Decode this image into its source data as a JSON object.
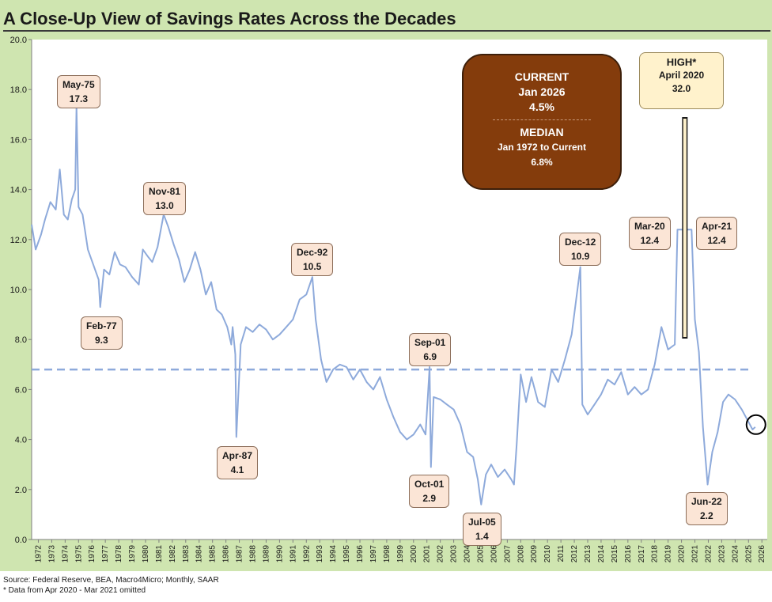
{
  "title": "A Close-Up View of Savings Rates Across the Decades",
  "colors": {
    "frame": "#cfe5b0",
    "line": "#8eaadb",
    "median": "#8eaadb",
    "current_box": "#843c0c",
    "callout": "#fbe5d6",
    "high_box": "#fff2cc"
  },
  "current_box": {
    "line1": "CURRENT",
    "line2": "Jan 2026",
    "line3": "4.5%",
    "line4": "MEDIAN",
    "line5": "Jan 1972 to Current",
    "line6": "6.8%"
  },
  "high_box": {
    "line1": "HIGH*",
    "line2": "April 2020",
    "line3": "32.0"
  },
  "callouts": [
    {
      "label": "May-75",
      "value": "17.3"
    },
    {
      "label": "Feb-77",
      "value": "9.3"
    },
    {
      "label": "Nov-81",
      "value": "13.0"
    },
    {
      "label": "Apr-87",
      "value": "4.1"
    },
    {
      "label": "Dec-92",
      "value": "10.5"
    },
    {
      "label": "Sep-01",
      "value": "6.9"
    },
    {
      "label": "Oct-01",
      "value": "2.9"
    },
    {
      "label": "Jul-05",
      "value": "1.4"
    },
    {
      "label": "Dec-12",
      "value": "10.9"
    },
    {
      "label": "Mar-20",
      "value": "12.4"
    },
    {
      "label": "Apr-21",
      "value": "12.4"
    },
    {
      "label": "Jun-22",
      "value": "2.2"
    }
  ],
  "footer": {
    "source": "Source: Federal Reserve, BEA, Macro4Micro; Monthly, SAAR",
    "note": "* Data from Apr 2020 - Mar 2021 omitted"
  },
  "chart_data": {
    "type": "line",
    "title": "A Close-Up View of Savings Rates Across the Decades",
    "xlabel": "",
    "ylabel": "",
    "ylim": [
      0,
      20
    ],
    "yticks": [
      "0.0",
      "2.0",
      "4.0",
      "6.0",
      "8.0",
      "10.0",
      "12.0",
      "14.0",
      "16.0",
      "18.0",
      "20.0"
    ],
    "x_categories": [
      "1972",
      "1973",
      "1974",
      "1975",
      "1976",
      "1977",
      "1978",
      "1979",
      "1980",
      "1981",
      "1982",
      "1983",
      "1984",
      "1985",
      "1986",
      "1987",
      "1988",
      "1989",
      "1990",
      "1991",
      "1992",
      "1993",
      "1994",
      "1995",
      "1996",
      "1997",
      "1998",
      "1999",
      "2000",
      "2001",
      "2002",
      "2003",
      "2004",
      "2005",
      "2006",
      "2007",
      "2008",
      "2009",
      "2010",
      "2011",
      "2012",
      "2013",
      "2014",
      "2015",
      "2016",
      "2017",
      "2018",
      "2019",
      "2020",
      "2021",
      "2022",
      "2023",
      "2024",
      "2025",
      "2026"
    ],
    "median": 6.8,
    "grid": false,
    "series": [
      {
        "x": [
          1972.0,
          1972.3,
          1972.7,
          1973.0,
          1973.4,
          1973.8,
          1974.1,
          1974.4,
          1974.7,
          1975.0,
          1975.25,
          1975.35,
          1975.5,
          1975.8,
          1976.2,
          1976.6,
          1977.0,
          1977.12,
          1977.4,
          1977.8,
          1978.2,
          1978.6,
          1979.0,
          1979.5,
          1980.0,
          1980.3,
          1980.7,
          1981.0,
          1981.4,
          1981.85,
          1982.2,
          1982.6,
          1983.0,
          1983.4,
          1983.8,
          1984.2,
          1984.6,
          1985.0,
          1985.4,
          1985.8,
          1986.2,
          1986.6,
          1986.9,
          1987.0,
          1987.2,
          1987.28,
          1987.6,
          1988.0,
          1988.5,
          1989.0,
          1989.5,
          1990.0,
          1990.5,
          1991.0,
          1991.5,
          1992.0,
          1992.5,
          1992.95,
          1993.2,
          1993.6,
          1994.0,
          1994.5,
          1995.0,
          1995.5,
          1996.0,
          1996.5,
          1997.0,
          1997.5,
          1998.0,
          1998.5,
          1999.0,
          1999.5,
          2000.0,
          2000.5,
          2001.0,
          2001.4,
          2001.7,
          2001.8,
          2002.0,
          2002.5,
          2003.0,
          2003.5,
          2004.0,
          2004.5,
          2004.95,
          2005.3,
          2005.55,
          2005.9,
          2006.3,
          2006.8,
          2007.3,
          2007.8,
          2008.0,
          2008.2,
          2008.5,
          2008.9,
          2009.3,
          2009.8,
          2010.3,
          2010.8,
          2011.3,
          2011.8,
          2012.3,
          2012.95,
          2013.1,
          2013.5,
          2014.0,
          2014.5,
          2015.0,
          2015.5,
          2016.0,
          2016.5,
          2017.0,
          2017.5,
          2018.0,
          2018.5,
          2019.0,
          2019.5,
          2020.0,
          2020.2,
          2021.25,
          2021.5,
          2021.8,
          2022.1,
          2022.45,
          2022.8,
          2023.2,
          2023.6,
          2024.0,
          2024.5,
          2025.0,
          2025.4,
          2025.8,
          2026.0
        ],
        "y": [
          12.6,
          11.6,
          12.2,
          12.8,
          13.5,
          13.2,
          14.8,
          13.0,
          12.8,
          13.6,
          14.0,
          17.3,
          13.3,
          13.0,
          11.6,
          11.0,
          10.4,
          9.3,
          10.8,
          10.6,
          11.5,
          11.0,
          10.9,
          10.5,
          10.2,
          11.6,
          11.3,
          11.1,
          11.7,
          13.0,
          12.5,
          11.8,
          11.2,
          10.3,
          10.8,
          11.5,
          10.8,
          9.8,
          10.3,
          9.2,
          9.0,
          8.5,
          7.8,
          8.5,
          7.4,
          4.1,
          7.8,
          8.5,
          8.3,
          8.6,
          8.4,
          8.0,
          8.2,
          8.5,
          8.8,
          9.6,
          9.8,
          10.5,
          8.8,
          7.2,
          6.3,
          6.8,
          7.0,
          6.9,
          6.4,
          6.8,
          6.3,
          6.0,
          6.5,
          5.6,
          4.9,
          4.3,
          4.0,
          4.2,
          4.6,
          4.2,
          6.9,
          2.9,
          5.7,
          5.6,
          5.4,
          5.2,
          4.6,
          3.5,
          3.3,
          2.4,
          1.4,
          2.6,
          3.0,
          2.5,
          2.8,
          2.4,
          2.2,
          3.8,
          6.6,
          5.5,
          6.5,
          5.5,
          5.3,
          6.8,
          6.3,
          7.2,
          8.2,
          10.9,
          5.4,
          5.0,
          5.4,
          5.8,
          6.4,
          6.2,
          6.7,
          5.8,
          6.1,
          5.8,
          6.0,
          7.0,
          8.5,
          7.6,
          7.8,
          12.4,
          12.4,
          8.8,
          7.5,
          4.5,
          2.2,
          3.5,
          4.3,
          5.5,
          5.8,
          5.6,
          5.2,
          4.8,
          4.4,
          4.5
        ]
      }
    ]
  }
}
